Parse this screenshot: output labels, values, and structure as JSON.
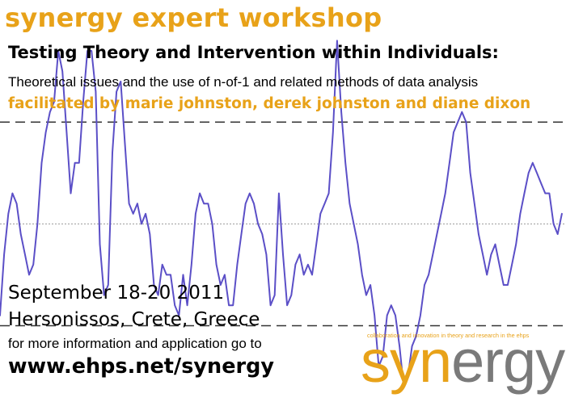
{
  "colors": {
    "accent_orange": "#e8a219",
    "line_purple": "#5b4fc7",
    "dashed_line": "#333333",
    "dotted_line": "#999999",
    "logo_gray": "#7a7a7a",
    "text_black": "#000000"
  },
  "header": {
    "series_title": "synergy expert workshop",
    "title": "Testing Theory and Intervention within Individuals:",
    "subtitle": "Theoretical issues and the use of n-of-1 and related methods of data analysis",
    "facilitators": "facilitated by marie johnston, derek johnston and diane dixon"
  },
  "event": {
    "dates": "September 18-20 2011",
    "location": "Hersonissos, Crete, Greece",
    "info_prompt": "for more information and application go to",
    "url": "www.ehps.net/synergy"
  },
  "logo": {
    "tagline": "collaboration and innovation in theory and research in the ehps",
    "part_highlight": "syn",
    "part_rest": "ergy"
  },
  "chart_data": {
    "type": "line",
    "title": "",
    "xlabel": "",
    "ylabel": "",
    "grid": false,
    "reference_lines": [
      {
        "style": "dashed",
        "value": 1
      },
      {
        "style": "dotted",
        "value": 0
      },
      {
        "style": "dashed",
        "value": -1
      }
    ],
    "ylim": [
      -1.75,
      2.2
    ],
    "xlim": [
      0,
      136
    ],
    "series": [
      {
        "values": [
          -0.9,
          -0.3,
          0.1,
          0.3,
          0.2,
          -0.1,
          -0.3,
          -0.5,
          -0.4,
          0.0,
          0.6,
          0.9,
          1.1,
          1.2,
          1.7,
          1.5,
          0.9,
          0.3,
          0.6,
          0.6,
          1.2,
          1.7,
          1.7,
          1.3,
          -0.2,
          -0.7,
          -0.6,
          0.7,
          1.3,
          1.4,
          0.8,
          0.2,
          0.1,
          0.2,
          0.0,
          0.1,
          -0.1,
          -0.6,
          -0.7,
          -0.4,
          -0.5,
          -0.5,
          -0.8,
          -0.9,
          -0.5,
          -0.8,
          -0.4,
          0.1,
          0.3,
          0.2,
          0.2,
          0.0,
          -0.4,
          -0.6,
          -0.5,
          -0.8,
          -0.8,
          -0.4,
          -0.1,
          0.2,
          0.3,
          0.2,
          0.0,
          -0.1,
          -0.3,
          -0.8,
          -0.7,
          0.3,
          -0.3,
          -0.8,
          -0.7,
          -0.4,
          -0.3,
          -0.5,
          -0.4,
          -0.5,
          -0.2,
          0.1,
          0.2,
          0.3,
          0.9,
          1.8,
          1.1,
          0.6,
          0.2,
          0.0,
          -0.2,
          -0.5,
          -0.7,
          -0.6,
          -0.9,
          -1.4,
          -1.3,
          -0.9,
          -0.8,
          -0.9,
          -1.2,
          -1.6,
          -1.5,
          -1.2,
          -1.1,
          -0.9,
          -0.6,
          -0.5,
          -0.3,
          -0.1,
          0.1,
          0.3,
          0.6,
          0.9,
          1.0,
          1.1,
          1.0,
          0.5,
          0.2,
          -0.1,
          -0.3,
          -0.5,
          -0.3,
          -0.2,
          -0.4,
          -0.6,
          -0.6,
          -0.4,
          -0.2,
          0.1,
          0.3,
          0.5,
          0.6,
          0.5,
          0.4,
          0.3,
          0.3,
          0.0,
          -0.1,
          0.1
        ]
      }
    ]
  }
}
